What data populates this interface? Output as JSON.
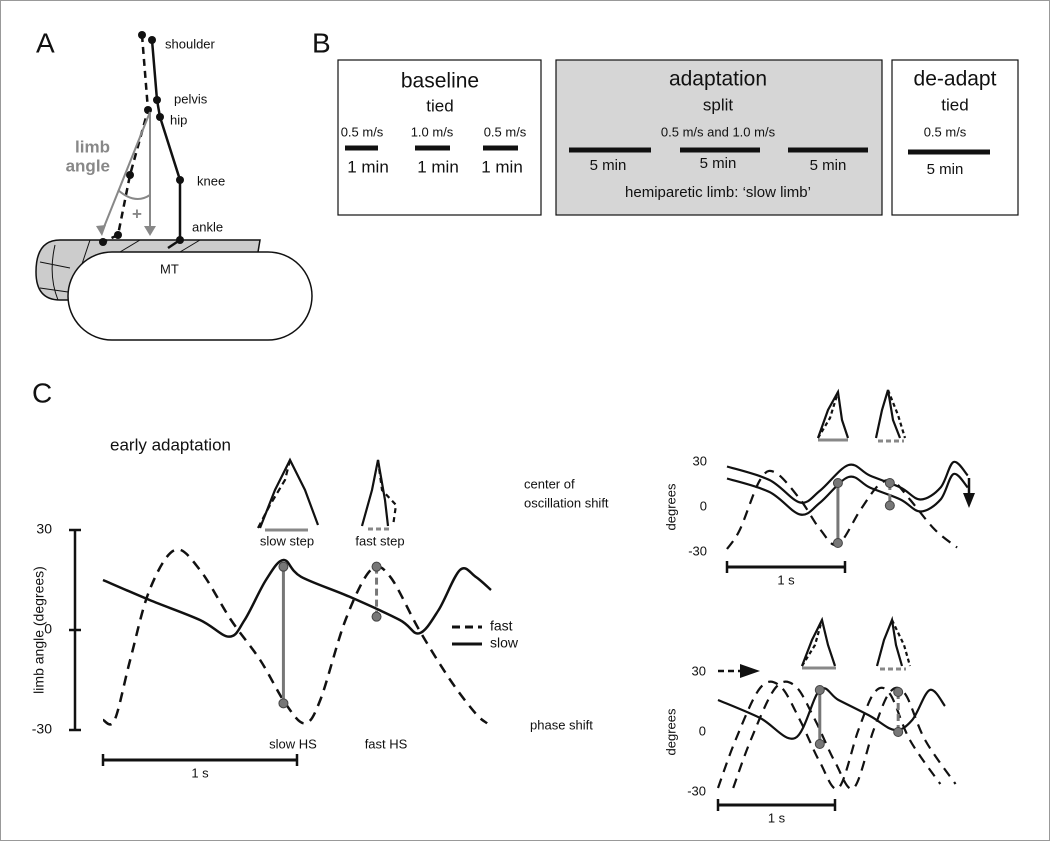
{
  "panel_a": {
    "label": "A",
    "shoulder": "shoulder",
    "pelvis": "pelvis",
    "hip": "hip",
    "knee": "knee",
    "ankle": "ankle",
    "mt": "MT",
    "limb_angle": [
      "limb",
      "angle"
    ],
    "sign": "+"
  },
  "panel_b": {
    "label": "B",
    "baseline": {
      "title": "baseline",
      "mode": "tied",
      "speeds": [
        "0.5 m/s",
        "1.0 m/s",
        "0.5 m/s"
      ],
      "durations": [
        "1 min",
        "1 min",
        "1 min"
      ]
    },
    "adaptation": {
      "title": "adaptation",
      "mode": "split",
      "speeds": "0.5 m/s and 1.0 m/s",
      "durations": [
        "5 min",
        "5 min",
        "5 min"
      ],
      "note": "hemiparetic limb: ‘slow limb’"
    },
    "deadapt": {
      "title": "de-adapt",
      "mode": "tied",
      "speed": "0.5 m/s",
      "duration": "5 min"
    }
  },
  "panel_c": {
    "label": "C",
    "title": "early adaptation",
    "step_labels": [
      "slow step",
      "fast step"
    ],
    "event_labels": [
      "slow HS",
      "fast HS"
    ],
    "conditions": [
      [
        "center of",
        "oscillation shift"
      ],
      [
        "phase shift"
      ]
    ],
    "charts": [
      {
        "type": "line",
        "ylabel": "limb angle (degrees)",
        "xlim": [
          0,
          2
        ],
        "ylim": [
          -30,
          30
        ],
        "yticks": [
          -30,
          0,
          30
        ],
        "scalebar": {
          "value": 1,
          "label": "1 s"
        },
        "legend": true,
        "series": [
          {
            "name": "fast",
            "style": "dashed",
            "color": "#111111",
            "x": [
              0,
              0.06,
              0.14,
              0.24,
              0.37,
              0.5,
              0.66,
              0.81,
              0.94,
              1.04,
              1.12,
              1.25,
              1.38,
              1.48,
              1.63,
              1.79,
              1.92,
              1.98
            ],
            "values": [
              -27,
              -27,
              -9,
              12,
              24,
              18,
              3,
              -9,
              -22,
              -28,
              -21,
              3,
              18,
              16,
              0,
              -15,
              -25,
              -28
            ]
          },
          {
            "name": "slow",
            "style": "solid",
            "color": "#111111",
            "x": [
              0,
              0.24,
              0.5,
              0.65,
              0.73,
              0.84,
              0.93,
              1.02,
              1.27,
              1.53,
              1.63,
              1.73,
              1.84,
              1.92,
              2.0
            ],
            "values": [
              15,
              9,
              3,
              -2,
              3,
              15,
              21,
              16,
              10,
              3,
              -1,
              6,
              18,
              16,
              12
            ]
          }
        ],
        "markers": [
          {
            "x": 0.93,
            "values": [
              19,
              -22
            ],
            "style": "solid",
            "color": "#777777"
          },
          {
            "x": 1.41,
            "values": [
              19,
              4
            ],
            "style": "dashed",
            "color": "#777777"
          }
        ]
      },
      {
        "type": "line",
        "ylabel": "degrees",
        "xlim": [
          0,
          2
        ],
        "ylim": [
          -30,
          30
        ],
        "yticks": [
          -30,
          0,
          30
        ],
        "scalebar": {
          "value": 1,
          "label": "1 s"
        },
        "series": [
          {
            "style": "dashed",
            "color": "#111111",
            "x": [
              0,
              0.11,
              0.28,
              0.41,
              0.62,
              0.79,
              0.94,
              1.13,
              1.29,
              1.41,
              1.55,
              1.76,
              1.95
            ],
            "values": [
              -28,
              -15,
              18,
              23,
              5,
              -15,
              -25,
              -2,
              15,
              17,
              5,
              -15,
              -27
            ]
          },
          {
            "style": "solid",
            "color": "#111111",
            "x": [
              0,
              0.36,
              0.62,
              0.79,
              1.03,
              1.21,
              1.47,
              1.64,
              1.81,
              1.92,
              2.04
            ],
            "values": [
              27,
              18,
              3,
              11,
              28,
              21,
              13,
              5,
              13,
              30,
              21
            ]
          },
          {
            "style": "solid",
            "color": "#111111",
            "x": [
              0,
              0.36,
              0.62,
              0.79,
              1.03,
              1.21,
              1.47,
              1.64,
              1.81,
              1.92,
              2.04
            ],
            "values": [
              19,
              10,
              -5,
              3,
              20,
              13,
              5,
              -3,
              5,
              22,
              13
            ]
          }
        ],
        "markers": [
          {
            "x": 0.94,
            "values": [
              16,
              -24
            ],
            "style": "solid",
            "color": "#777777"
          },
          {
            "x": 1.38,
            "values": [
              16,
              1
            ],
            "style": "dashed",
            "color": "#777777"
          }
        ]
      },
      {
        "type": "line",
        "ylabel": "degrees",
        "xlim": [
          0,
          2
        ],
        "ylim": [
          -30,
          30
        ],
        "yticks": [
          -30,
          0,
          30
        ],
        "scalebar": {
          "value": 1,
          "label": "1 s"
        },
        "series": [
          {
            "style": "dashed",
            "color": "#111111",
            "x": [
              0,
              0.15,
              0.36,
              0.53,
              0.7,
              0.87,
              1.03,
              1.2,
              1.34,
              1.47,
              1.64,
              1.9
            ],
            "values": [
              -28,
              -4,
              22,
              23,
              6,
              -15,
              -28,
              1,
              20,
              19,
              -4,
              -26
            ]
          },
          {
            "style": "dashed",
            "color": "#111111",
            "x": [
              0.13,
              0.28,
              0.49,
              0.66,
              0.83,
              1.0,
              1.16,
              1.33,
              1.47,
              1.6,
              1.77,
              2.03
            ],
            "values": [
              -28,
              -4,
              22,
              23,
              6,
              -15,
              -28,
              1,
              20,
              19,
              -4,
              -26
            ]
          },
          {
            "style": "solid",
            "color": "#111111",
            "x": [
              0,
              0.36,
              0.66,
              0.87,
              1.03,
              1.3,
              1.51,
              1.66,
              1.81,
              1.94
            ],
            "values": [
              16,
              7,
              -3,
              21,
              16,
              8,
              1,
              6,
              21,
              13
            ]
          }
        ],
        "markers": [
          {
            "x": 0.87,
            "values": [
              21,
              -6
            ],
            "style": "solid",
            "color": "#777777"
          },
          {
            "x": 1.54,
            "values": [
              20,
              0
            ],
            "style": "dashed",
            "color": "#777777"
          }
        ]
      }
    ]
  }
}
